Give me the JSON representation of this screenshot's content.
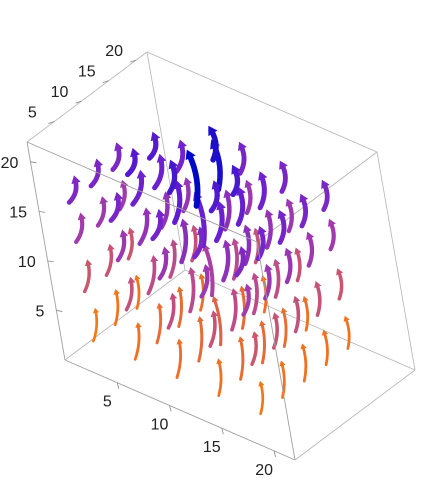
{
  "chart_data": {
    "type": "vector_field_3d",
    "title": "",
    "xlabel": "",
    "ylabel": "",
    "zlabel": "",
    "axes": {
      "x": {
        "range": [
          0,
          22
        ],
        "ticks": [
          5,
          10,
          15,
          20
        ]
      },
      "y": {
        "range": [
          0,
          22
        ],
        "ticks": [
          5,
          10,
          15,
          20
        ]
      },
      "z": {
        "range": [
          0,
          22
        ],
        "ticks": [
          5,
          10,
          15,
          20
        ]
      }
    },
    "color_scale": {
      "low": "#ff7f00",
      "mid": "#b043a0",
      "high_purple": "#6a1fd0",
      "max": "#0008c8"
    },
    "box": true,
    "grid": false,
    "legend": "none",
    "field_note": "swirling arrows; strongest upward flow near the center column",
    "streamlines": [
      {
        "x": 2,
        "y": 2,
        "z": 2,
        "dx": 0.4,
        "dy": 0.6,
        "dz": 3.0,
        "c": 0.05
      },
      {
        "x": 6,
        "y": 2,
        "z": 2,
        "dx": 0.6,
        "dy": 0.5,
        "dz": 3.5,
        "c": 0.1
      },
      {
        "x": 10,
        "y": 2,
        "z": 2,
        "dx": 0.7,
        "dy": 0.3,
        "dz": 3.8,
        "c": 0.12
      },
      {
        "x": 14,
        "y": 2,
        "z": 2,
        "dx": 0.5,
        "dy": 0.2,
        "dz": 3.6,
        "c": 0.1
      },
      {
        "x": 18,
        "y": 2,
        "z": 2,
        "dx": 0.3,
        "dy": 0.4,
        "dz": 3.0,
        "c": 0.06
      },
      {
        "x": 2,
        "y": 6,
        "z": 2,
        "dx": 0.5,
        "dy": 0.3,
        "dz": 3.4,
        "c": 0.08
      },
      {
        "x": 6,
        "y": 6,
        "z": 2,
        "dx": 0.6,
        "dy": 0.5,
        "dz": 3.8,
        "c": 0.14
      },
      {
        "x": 10,
        "y": 6,
        "z": 2,
        "dx": 0.5,
        "dy": 0.6,
        "dz": 4.2,
        "c": 0.16
      },
      {
        "x": 14,
        "y": 6,
        "z": 2,
        "dx": 0.4,
        "dy": 0.5,
        "dz": 4.0,
        "c": 0.14
      },
      {
        "x": 18,
        "y": 6,
        "z": 2,
        "dx": 0.3,
        "dy": 0.4,
        "dz": 3.4,
        "c": 0.09
      },
      {
        "x": 2,
        "y": 10,
        "z": 2,
        "dx": 0.4,
        "dy": 0.2,
        "dz": 3.2,
        "c": 0.08
      },
      {
        "x": 6,
        "y": 10,
        "z": 2,
        "dx": 0.5,
        "dy": 0.4,
        "dz": 3.8,
        "c": 0.14
      },
      {
        "x": 10,
        "y": 10,
        "z": 2,
        "dx": 0.1,
        "dy": 0.1,
        "dz": 4.6,
        "c": 0.2
      },
      {
        "x": 14,
        "y": 10,
        "z": 2,
        "dx": 0.4,
        "dy": 0.4,
        "dz": 4.0,
        "c": 0.15
      },
      {
        "x": 18,
        "y": 10,
        "z": 2,
        "dx": 0.3,
        "dy": 0.3,
        "dz": 3.5,
        "c": 0.1
      },
      {
        "x": 6,
        "y": 14,
        "z": 2,
        "dx": 0.5,
        "dy": 0.3,
        "dz": 3.5,
        "c": 0.12
      },
      {
        "x": 10,
        "y": 14,
        "z": 2,
        "dx": 0.4,
        "dy": 0.4,
        "dz": 4.0,
        "c": 0.16
      },
      {
        "x": 14,
        "y": 14,
        "z": 2,
        "dx": 0.3,
        "dy": 0.4,
        "dz": 3.6,
        "c": 0.13
      },
      {
        "x": 18,
        "y": 14,
        "z": 2,
        "dx": 0.2,
        "dy": 0.3,
        "dz": 3.2,
        "c": 0.1
      },
      {
        "x": 10,
        "y": 18,
        "z": 2,
        "dx": 0.3,
        "dy": 0.3,
        "dz": 3.4,
        "c": 0.12
      },
      {
        "x": 14,
        "y": 18,
        "z": 2,
        "dx": 0.3,
        "dy": 0.2,
        "dz": 3.2,
        "c": 0.11
      },
      {
        "x": 18,
        "y": 18,
        "z": 2,
        "dx": 0.2,
        "dy": 0.2,
        "dz": 3.0,
        "c": 0.09
      },
      {
        "x": 2,
        "y": 2,
        "z": 7,
        "dx": 0.6,
        "dy": 0.4,
        "dz": 3.0,
        "c": 0.3
      },
      {
        "x": 6,
        "y": 2,
        "z": 7,
        "dx": 0.8,
        "dy": 0.3,
        "dz": 3.2,
        "c": 0.34
      },
      {
        "x": 10,
        "y": 2,
        "z": 7,
        "dx": 0.9,
        "dy": 0.2,
        "dz": 3.5,
        "c": 0.36
      },
      {
        "x": 14,
        "y": 2,
        "z": 7,
        "dx": 0.7,
        "dy": 0.4,
        "dz": 3.4,
        "c": 0.33
      },
      {
        "x": 18,
        "y": 2,
        "z": 7,
        "dx": 0.5,
        "dy": 0.5,
        "dz": 3.0,
        "c": 0.3
      },
      {
        "x": 2,
        "y": 6,
        "z": 7,
        "dx": 0.7,
        "dy": 0.3,
        "dz": 3.0,
        "c": 0.32
      },
      {
        "x": 6,
        "y": 6,
        "z": 7,
        "dx": 0.8,
        "dy": 0.6,
        "dz": 3.6,
        "c": 0.38
      },
      {
        "x": 10,
        "y": 6,
        "z": 7,
        "dx": 0.4,
        "dy": 0.7,
        "dz": 4.0,
        "c": 0.4
      },
      {
        "x": 14,
        "y": 6,
        "z": 7,
        "dx": 0.5,
        "dy": 0.6,
        "dz": 3.8,
        "c": 0.38
      },
      {
        "x": 18,
        "y": 6,
        "z": 7,
        "dx": 0.4,
        "dy": 0.5,
        "dz": 3.2,
        "c": 0.33
      },
      {
        "x": 2,
        "y": 10,
        "z": 7,
        "dx": 0.6,
        "dy": 0.2,
        "dz": 3.0,
        "c": 0.31
      },
      {
        "x": 6,
        "y": 10,
        "z": 7,
        "dx": 0.7,
        "dy": 0.4,
        "dz": 3.6,
        "c": 0.38
      },
      {
        "x": 10,
        "y": 10,
        "z": 7,
        "dx": 0.1,
        "dy": 0.1,
        "dz": 4.8,
        "c": 0.48
      },
      {
        "x": 14,
        "y": 10,
        "z": 7,
        "dx": 0.5,
        "dy": 0.4,
        "dz": 3.8,
        "c": 0.39
      },
      {
        "x": 18,
        "y": 10,
        "z": 7,
        "dx": 0.4,
        "dy": 0.3,
        "dz": 3.3,
        "c": 0.34
      },
      {
        "x": 6,
        "y": 14,
        "z": 7,
        "dx": 0.6,
        "dy": 0.3,
        "dz": 3.4,
        "c": 0.35
      },
      {
        "x": 10,
        "y": 14,
        "z": 7,
        "dx": 0.5,
        "dy": 0.4,
        "dz": 3.8,
        "c": 0.4
      },
      {
        "x": 14,
        "y": 14,
        "z": 7,
        "dx": 0.4,
        "dy": 0.4,
        "dz": 3.5,
        "c": 0.37
      },
      {
        "x": 18,
        "y": 14,
        "z": 7,
        "dx": 0.3,
        "dy": 0.3,
        "dz": 3.1,
        "c": 0.33
      },
      {
        "x": 10,
        "y": 18,
        "z": 7,
        "dx": 0.4,
        "dy": 0.3,
        "dz": 3.2,
        "c": 0.34
      },
      {
        "x": 14,
        "y": 18,
        "z": 7,
        "dx": 0.3,
        "dy": 0.3,
        "dz": 3.0,
        "c": 0.33
      },
      {
        "x": 18,
        "y": 18,
        "z": 7,
        "dx": 0.3,
        "dy": 0.2,
        "dz": 2.8,
        "c": 0.31
      },
      {
        "x": 2,
        "y": 2,
        "z": 12,
        "dx": 0.8,
        "dy": 0.3,
        "dz": 2.8,
        "c": 0.52
      },
      {
        "x": 6,
        "y": 2,
        "z": 12,
        "dx": 0.9,
        "dy": 0.2,
        "dz": 3.0,
        "c": 0.55
      },
      {
        "x": 10,
        "y": 2,
        "z": 12,
        "dx": 1.0,
        "dy": 0.1,
        "dz": 3.2,
        "c": 0.57
      },
      {
        "x": 14,
        "y": 2,
        "z": 12,
        "dx": 0.8,
        "dy": 0.3,
        "dz": 3.1,
        "c": 0.55
      },
      {
        "x": 18,
        "y": 2,
        "z": 12,
        "dx": 0.6,
        "dy": 0.5,
        "dz": 2.8,
        "c": 0.52
      },
      {
        "x": 2,
        "y": 6,
        "z": 12,
        "dx": 0.8,
        "dy": 0.3,
        "dz": 2.8,
        "c": 0.54
      },
      {
        "x": 6,
        "y": 6,
        "z": 12,
        "dx": 0.9,
        "dy": 0.6,
        "dz": 3.4,
        "c": 0.6
      },
      {
        "x": 10,
        "y": 6,
        "z": 12,
        "dx": 0.4,
        "dy": 0.8,
        "dz": 3.8,
        "c": 0.64
      },
      {
        "x": 14,
        "y": 6,
        "z": 12,
        "dx": 0.5,
        "dy": 0.7,
        "dz": 3.6,
        "c": 0.62
      },
      {
        "x": 18,
        "y": 6,
        "z": 12,
        "dx": 0.4,
        "dy": 0.6,
        "dz": 3.0,
        "c": 0.56
      },
      {
        "x": 2,
        "y": 10,
        "z": 12,
        "dx": 0.7,
        "dy": 0.2,
        "dz": 2.8,
        "c": 0.53
      },
      {
        "x": 6,
        "y": 10,
        "z": 12,
        "dx": 0.8,
        "dy": 0.4,
        "dz": 3.4,
        "c": 0.61
      },
      {
        "x": 10,
        "y": 10,
        "z": 12,
        "dx": 0.1,
        "dy": 0.1,
        "dz": 5.0,
        "c": 0.8
      },
      {
        "x": 14,
        "y": 10,
        "z": 12,
        "dx": 0.5,
        "dy": 0.4,
        "dz": 3.6,
        "c": 0.63
      },
      {
        "x": 18,
        "y": 10,
        "z": 12,
        "dx": 0.4,
        "dy": 0.3,
        "dz": 3.1,
        "c": 0.57
      },
      {
        "x": 6,
        "y": 14,
        "z": 12,
        "dx": 0.7,
        "dy": 0.3,
        "dz": 3.2,
        "c": 0.58
      },
      {
        "x": 10,
        "y": 14,
        "z": 12,
        "dx": 0.5,
        "dy": 0.5,
        "dz": 3.6,
        "c": 0.63
      },
      {
        "x": 14,
        "y": 14,
        "z": 12,
        "dx": 0.4,
        "dy": 0.5,
        "dz": 3.4,
        "c": 0.6
      },
      {
        "x": 18,
        "y": 14,
        "z": 12,
        "dx": 0.3,
        "dy": 0.4,
        "dz": 3.0,
        "c": 0.55
      },
      {
        "x": 10,
        "y": 18,
        "z": 12,
        "dx": 0.4,
        "dy": 0.3,
        "dz": 3.0,
        "c": 0.56
      },
      {
        "x": 14,
        "y": 18,
        "z": 12,
        "dx": 0.3,
        "dy": 0.3,
        "dz": 2.9,
        "c": 0.55
      },
      {
        "x": 18,
        "y": 18,
        "z": 12,
        "dx": 0.3,
        "dy": 0.3,
        "dz": 2.7,
        "c": 0.53
      },
      {
        "x": 2,
        "y": 2,
        "z": 16,
        "dx": 0.9,
        "dy": 0.2,
        "dz": 2.6,
        "c": 0.7
      },
      {
        "x": 6,
        "y": 2,
        "z": 16,
        "dx": 1.0,
        "dy": 0.2,
        "dz": 2.8,
        "c": 0.73
      },
      {
        "x": 10,
        "y": 2,
        "z": 16,
        "dx": 1.1,
        "dy": 0.1,
        "dz": 3.0,
        "c": 0.75
      },
      {
        "x": 14,
        "y": 2,
        "z": 16,
        "dx": 0.9,
        "dy": 0.3,
        "dz": 2.9,
        "c": 0.73
      },
      {
        "x": 18,
        "y": 2,
        "z": 16,
        "dx": 0.7,
        "dy": 0.5,
        "dz": 2.6,
        "c": 0.7
      },
      {
        "x": 2,
        "y": 6,
        "z": 16,
        "dx": 0.9,
        "dy": 0.3,
        "dz": 2.6,
        "c": 0.72
      },
      {
        "x": 6,
        "y": 6,
        "z": 16,
        "dx": 1.0,
        "dy": 0.6,
        "dz": 3.2,
        "c": 0.78
      },
      {
        "x": 10,
        "y": 6,
        "z": 16,
        "dx": 0.4,
        "dy": 0.9,
        "dz": 3.6,
        "c": 0.82
      },
      {
        "x": 14,
        "y": 6,
        "z": 16,
        "dx": 0.5,
        "dy": 0.8,
        "dz": 3.4,
        "c": 0.8
      },
      {
        "x": 18,
        "y": 6,
        "z": 16,
        "dx": 0.4,
        "dy": 0.6,
        "dz": 2.8,
        "c": 0.74
      },
      {
        "x": 2,
        "y": 10,
        "z": 16,
        "dx": 0.8,
        "dy": 0.2,
        "dz": 2.6,
        "c": 0.71
      },
      {
        "x": 6,
        "y": 10,
        "z": 16,
        "dx": 0.9,
        "dy": 0.4,
        "dz": 3.2,
        "c": 0.79
      },
      {
        "x": 10,
        "y": 10,
        "z": 16,
        "dx": 0.1,
        "dy": 0.1,
        "dz": 5.2,
        "c": 1.0
      },
      {
        "x": 14,
        "y": 10,
        "z": 16,
        "dx": 0.5,
        "dy": 0.4,
        "dz": 3.4,
        "c": 0.81
      },
      {
        "x": 18,
        "y": 10,
        "z": 16,
        "dx": 0.4,
        "dy": 0.3,
        "dz": 2.9,
        "c": 0.75
      },
      {
        "x": 6,
        "y": 14,
        "z": 16,
        "dx": 0.8,
        "dy": 0.3,
        "dz": 3.0,
        "c": 0.76
      },
      {
        "x": 10,
        "y": 14,
        "z": 16,
        "dx": 0.2,
        "dy": 0.2,
        "dz": 4.6,
        "c": 0.95
      },
      {
        "x": 14,
        "y": 14,
        "z": 16,
        "dx": 0.4,
        "dy": 0.5,
        "dz": 3.2,
        "c": 0.78
      },
      {
        "x": 18,
        "y": 14,
        "z": 16,
        "dx": 0.3,
        "dy": 0.4,
        "dz": 2.8,
        "c": 0.73
      },
      {
        "x": 10,
        "y": 18,
        "z": 16,
        "dx": 0.4,
        "dy": 0.3,
        "dz": 2.8,
        "c": 0.74
      },
      {
        "x": 14,
        "y": 18,
        "z": 16,
        "dx": 0.3,
        "dy": 0.3,
        "dz": 2.7,
        "c": 0.73
      },
      {
        "x": 18,
        "y": 18,
        "z": 16,
        "dx": 0.3,
        "dy": 0.3,
        "dz": 2.6,
        "c": 0.71
      },
      {
        "x": 6,
        "y": 6,
        "z": 19,
        "dx": 0.8,
        "dy": 0.4,
        "dz": 2.4,
        "c": 0.84
      },
      {
        "x": 10,
        "y": 6,
        "z": 19,
        "dx": 0.4,
        "dy": 0.6,
        "dz": 2.8,
        "c": 0.87
      },
      {
        "x": 14,
        "y": 6,
        "z": 19,
        "dx": 0.5,
        "dy": 0.6,
        "dz": 2.6,
        "c": 0.85
      },
      {
        "x": 6,
        "y": 10,
        "z": 19,
        "dx": 0.7,
        "dy": 0.3,
        "dz": 2.4,
        "c": 0.84
      },
      {
        "x": 14,
        "y": 10,
        "z": 19,
        "dx": 0.4,
        "dy": 0.3,
        "dz": 2.6,
        "c": 0.86
      },
      {
        "x": 10,
        "y": 14,
        "z": 19,
        "dx": 0.2,
        "dy": 0.2,
        "dz": 3.0,
        "c": 0.94
      }
    ]
  }
}
